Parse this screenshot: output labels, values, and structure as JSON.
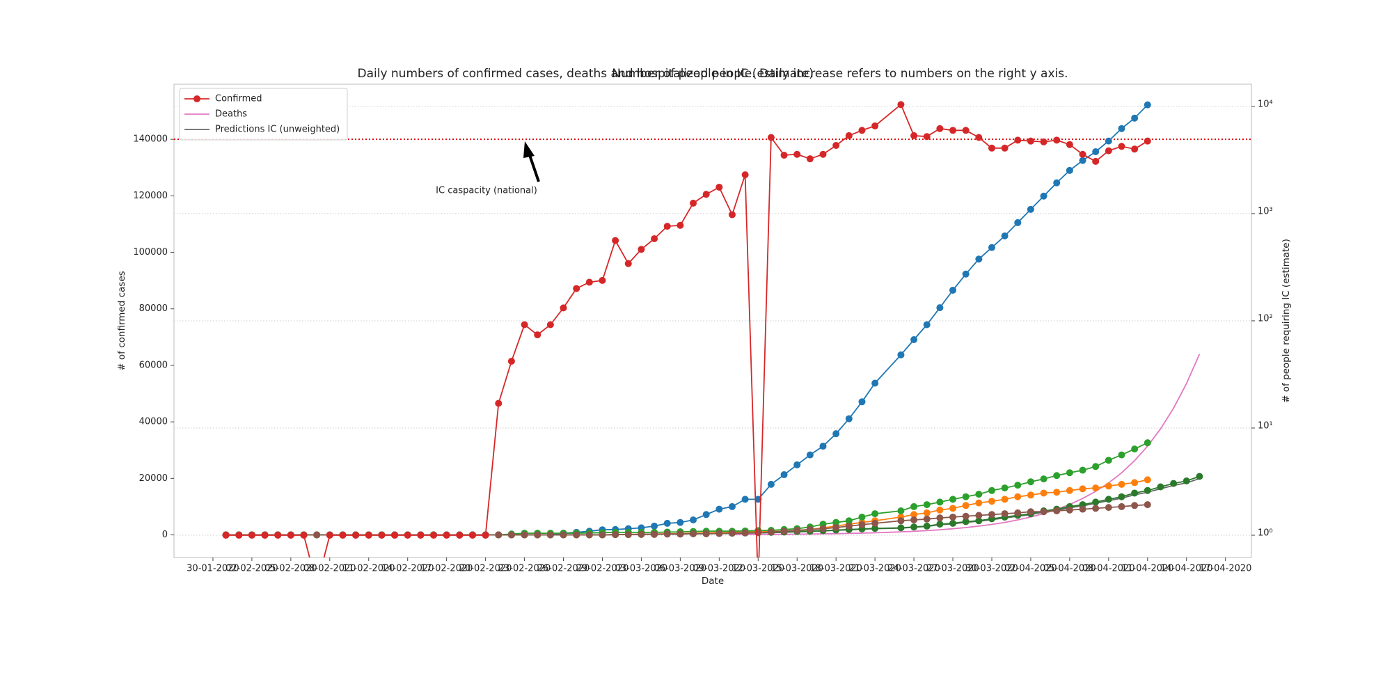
{
  "chart_data": {
    "type": "line",
    "title": "Daily numbers of confirmed cases, deaths and hospitalized people. Daily increase refers to numbers on the right y axis.",
    "subtitle": "Number of people in IC (estimate)",
    "x_label": "Date",
    "y_label": "# of confirmed cases",
    "y2_label": "# of people requiring IC (estimate)",
    "x": [
      "31-01-2020",
      "01-02-2020",
      "02-02-2020",
      "03-02-2020",
      "04-02-2020",
      "05-02-2020",
      "06-02-2020",
      "07-02-2020",
      "08-02-2020",
      "09-02-2020",
      "10-02-2020",
      "11-02-2020",
      "12-02-2020",
      "13-02-2020",
      "14-02-2020",
      "15-02-2020",
      "16-02-2020",
      "17-02-2020",
      "18-02-2020",
      "19-02-2020",
      "20-02-2020",
      "21-02-2020",
      "22-02-2020",
      "23-02-2020",
      "24-02-2020",
      "25-02-2020",
      "26-02-2020",
      "27-02-2020",
      "28-02-2020",
      "29-02-2020",
      "01-03-2020",
      "02-03-2020",
      "03-03-2020",
      "04-03-2020",
      "05-03-2020",
      "06-03-2020",
      "07-03-2020",
      "08-03-2020",
      "09-03-2020",
      "10-03-2020",
      "11-03-2020",
      "12-03-2020",
      "13-03-2020",
      "14-03-2020",
      "15-03-2020",
      "16-03-2020",
      "17-03-2020",
      "18-03-2020",
      "19-03-2020",
      "20-03-2020",
      "21-03-2020",
      "23-03-2020",
      "24-03-2020",
      "25-03-2020",
      "26-03-2020",
      "27-03-2020",
      "28-03-2020",
      "29-03-2020",
      "30-03-2020",
      "31-03-2020",
      "01-04-2020",
      "02-04-2020",
      "03-04-2020",
      "04-04-2020",
      "05-04-2020",
      "06-04-2020",
      "07-04-2020",
      "08-04-2020",
      "09-04-2020",
      "10-04-2020",
      "11-04-2020",
      "12-04-2020",
      "13-04-2020",
      "14-04-2020",
      "15-04-2020"
    ],
    "series": [
      {
        "name": "Confirmed",
        "color": "#d62728",
        "axis": "y2",
        "markers": true,
        "values": [
          1,
          1,
          1,
          1,
          1,
          1,
          1,
          0,
          1,
          1,
          1,
          1,
          1,
          1,
          1,
          1,
          1,
          1,
          1,
          1,
          1,
          17,
          42,
          92,
          74,
          92,
          132,
          200,
          229,
          238,
          561,
          342,
          464,
          583,
          762,
          777,
          1251,
          1514,
          1763,
          977,
          2302,
          0,
          5130,
          3505,
          3572,
          3245,
          3572,
          4323,
          5334,
          5977,
          6573,
          10400,
          5334,
          5230,
          6210,
          5977,
          5977,
          5130,
          4083,
          4083,
          4843,
          4750,
          4665,
          4843,
          4405,
          3572,
          3069,
          3854,
          4237,
          4000,
          4750,
          null,
          null,
          null,
          null
        ]
      },
      {
        "name": "Deaths",
        "color": "#e377c2",
        "axis": "y",
        "markers": false,
        "values": [
          null,
          null,
          null,
          null,
          null,
          null,
          null,
          null,
          null,
          null,
          null,
          null,
          null,
          null,
          null,
          null,
          null,
          null,
          null,
          null,
          null,
          null,
          null,
          null,
          null,
          null,
          null,
          null,
          null,
          null,
          null,
          null,
          null,
          null,
          null,
          null,
          null,
          null,
          null,
          105,
          125,
          150,
          179,
          214,
          256,
          306,
          365,
          436,
          522,
          623,
          745,
          1064,
          1271,
          1519,
          1815,
          2170,
          2590,
          3100,
          3700,
          4420,
          5290,
          6320,
          7550,
          9020,
          10780,
          12880,
          15390,
          18390,
          21980,
          26270,
          31390,
          37510,
          44820,
          53560,
          64000
        ]
      },
      {
        "name": "Predictions IC (unweighted)",
        "color": "#666666",
        "axis": "y",
        "markers": false,
        "values": [
          0,
          0,
          0,
          0,
          0,
          0,
          0,
          0,
          0,
          0,
          0,
          0,
          0,
          0,
          0,
          0,
          0,
          0,
          0,
          0,
          0,
          0,
          0,
          0,
          0,
          0,
          0,
          0,
          0,
          0,
          100,
          100,
          200,
          200,
          300,
          300,
          400,
          400,
          500,
          500,
          600,
          700,
          800,
          900,
          1100,
          1200,
          1400,
          1600,
          1800,
          2000,
          2200,
          2400,
          2700,
          3000,
          3600,
          3900,
          4500,
          4800,
          5400,
          6000,
          6600,
          7200,
          8100,
          8700,
          9600,
          10300,
          11200,
          12100,
          13000,
          14200,
          15100,
          16300,
          17500,
          18400,
          19900
        ]
      },
      {
        "color": "#1f77b4",
        "axis": "y",
        "markers": true,
        "values": [
          0,
          0,
          0,
          0,
          0,
          0,
          0,
          0,
          0,
          0,
          0,
          0,
          0,
          0,
          0,
          0,
          0,
          0,
          0,
          0,
          0,
          0,
          0,
          0,
          0,
          0,
          600,
          900,
          1300,
          1800,
          1900,
          2200,
          2500,
          3100,
          4100,
          4400,
          5300,
          7200,
          9100,
          10000,
          12600,
          12600,
          17900,
          21300,
          24800,
          28300,
          31400,
          35800,
          41100,
          47100,
          53700,
          63700,
          69100,
          74400,
          80400,
          86600,
          92300,
          97600,
          101700,
          105800,
          110500,
          115200,
          119900,
          124600,
          129000,
          132500,
          135600,
          139400,
          143800,
          147500,
          152200,
          null,
          null,
          null,
          null
        ]
      },
      {
        "color": "#ff7f0e",
        "axis": "y",
        "markers": true,
        "values": [
          0,
          0,
          0,
          0,
          0,
          0,
          0,
          0,
          0,
          0,
          0,
          0,
          0,
          0,
          0,
          0,
          0,
          0,
          0,
          0,
          0,
          0,
          0,
          0,
          0,
          0,
          0,
          0,
          0,
          0,
          100,
          200,
          200,
          300,
          400,
          500,
          600,
          700,
          800,
          900,
          1000,
          1100,
          1200,
          1300,
          1600,
          1900,
          2500,
          3100,
          3800,
          4400,
          5000,
          6300,
          7200,
          7800,
          8800,
          9400,
          10400,
          11300,
          11900,
          12600,
          13500,
          14100,
          14800,
          15100,
          15700,
          16300,
          16600,
          17300,
          17900,
          18500,
          19500,
          null,
          null,
          null,
          null
        ]
      },
      {
        "color": "#2ca02c",
        "axis": "y",
        "markers": true,
        "values": [
          0,
          0,
          0,
          0,
          0,
          0,
          0,
          0,
          0,
          0,
          0,
          0,
          0,
          0,
          0,
          0,
          0,
          0,
          0,
          0,
          0,
          0,
          300,
          600,
          600,
          600,
          600,
          600,
          700,
          800,
          900,
          900,
          900,
          900,
          1000,
          1100,
          1200,
          1300,
          1300,
          1300,
          1400,
          1500,
          1600,
          1900,
          2200,
          2800,
          3800,
          4400,
          5000,
          6300,
          7500,
          8500,
          10000,
          10700,
          11600,
          12600,
          13500,
          14400,
          15700,
          16600,
          17600,
          18800,
          19800,
          21000,
          22000,
          22900,
          24200,
          26400,
          28300,
          30400,
          32600,
          null,
          null,
          null,
          null
        ]
      },
      {
        "color": "#2a7a2a",
        "axis": "y",
        "markers": true,
        "values": [
          0,
          0,
          0,
          0,
          0,
          0,
          0,
          0,
          0,
          0,
          0,
          0,
          0,
          0,
          0,
          0,
          0,
          0,
          0,
          0,
          0,
          0,
          0,
          0,
          0,
          0,
          0,
          0,
          0,
          0,
          100,
          100,
          200,
          200,
          300,
          300,
          400,
          400,
          500,
          600,
          700,
          800,
          900,
          1000,
          1200,
          1300,
          1500,
          1700,
          1900,
          2100,
          2300,
          2500,
          2800,
          3100,
          3800,
          4100,
          4700,
          5000,
          5700,
          6300,
          6900,
          7500,
          8500,
          9100,
          10000,
          10700,
          11600,
          12600,
          13500,
          14800,
          15700,
          17000,
          18200,
          19100,
          20700
        ]
      },
      {
        "color": "#8c564b",
        "axis": "y",
        "markers": true,
        "values": [
          0,
          0,
          0,
          0,
          0,
          0,
          0,
          0,
          0,
          0,
          0,
          0,
          0,
          0,
          0,
          0,
          0,
          0,
          0,
          0,
          0,
          0,
          0,
          0,
          0,
          0,
          0,
          0,
          0,
          0,
          100,
          100,
          200,
          200,
          300,
          300,
          400,
          400,
          500,
          600,
          700,
          800,
          1000,
          1300,
          1600,
          1900,
          2200,
          2600,
          3100,
          3600,
          4100,
          5000,
          5300,
          5600,
          6000,
          6300,
          6600,
          6900,
          7200,
          7500,
          7800,
          8200,
          8200,
          8500,
          8800,
          9100,
          9400,
          9700,
          10000,
          10400,
          10700,
          null,
          null,
          null,
          null
        ]
      }
    ],
    "xlim": [
      "27-01-2020",
      "19-04-2020"
    ],
    "xticks": [
      "30-01-2020",
      "02-02-2020",
      "05-02-2020",
      "08-02-2020",
      "11-02-2020",
      "14-02-2020",
      "17-02-2020",
      "20-02-2020",
      "23-02-2020",
      "26-02-2020",
      "29-02-2020",
      "03-03-2020",
      "06-03-2020",
      "09-03-2020",
      "12-03-2020",
      "15-03-2020",
      "18-03-2020",
      "21-03-2020",
      "24-03-2020",
      "27-03-2020",
      "30-03-2020",
      "02-04-2020",
      "05-04-2020",
      "08-04-2020",
      "11-04-2020",
      "14-04-2020",
      "17-04-2020"
    ],
    "ylim": [
      -8000,
      159500
    ],
    "yticks": [
      0,
      20000,
      40000,
      60000,
      80000,
      100000,
      120000,
      140000
    ],
    "y2lim": [
      0.62,
      16100
    ],
    "y2_log": true,
    "y2ticks": [
      {
        "value": 1,
        "label": "10⁰"
      },
      {
        "value": 10,
        "label": "10¹"
      },
      {
        "value": 100,
        "label": "10²"
      },
      {
        "value": 1000,
        "label": "10³"
      },
      {
        "value": 10000,
        "label": "10⁴"
      }
    ],
    "grid": "y2",
    "legend": "upper left",
    "reference_line": {
      "value": 140000,
      "color": "#e00000",
      "label": "IC caspacity (national)"
    }
  }
}
